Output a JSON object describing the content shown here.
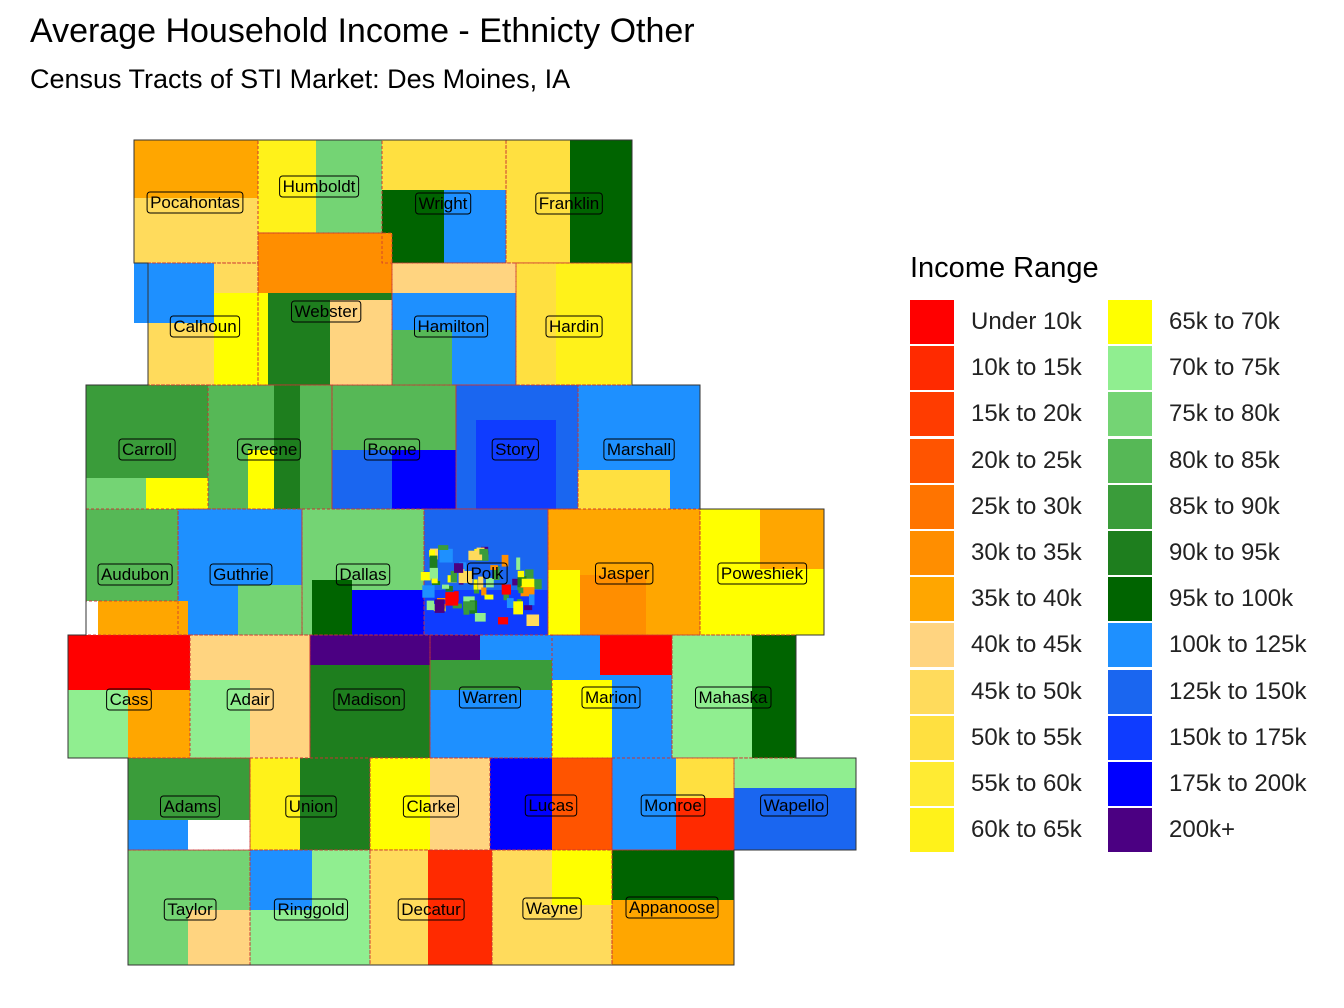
{
  "title": "Average Household Income - Ethnicty Other",
  "subtitle": "Census Tracts of STI Market: Des Moines, IA",
  "legend": {
    "title": "Income Range",
    "items": [
      {
        "label": "Under 10k",
        "color": "#ff0000"
      },
      {
        "label": "10k to 15k",
        "color": "#ff2a00"
      },
      {
        "label": "15k to 20k",
        "color": "#ff3c00"
      },
      {
        "label": "20k to 25k",
        "color": "#ff5400"
      },
      {
        "label": "25k to 30k",
        "color": "#ff7400"
      },
      {
        "label": "30k to 35k",
        "color": "#ff8e00"
      },
      {
        "label": "35k to 40k",
        "color": "#ffa600"
      },
      {
        "label": "40k to 45k",
        "color": "#ffd480"
      },
      {
        "label": "45k to 50k",
        "color": "#ffdb5c"
      },
      {
        "label": "50k to 55k",
        "color": "#ffe040"
      },
      {
        "label": "55k to 60k",
        "color": "#ffeb33"
      },
      {
        "label": "60k to 65k",
        "color": "#fff21a"
      },
      {
        "label": "65k to 70k",
        "color": "#ffff00"
      },
      {
        "label": "70k to 75k",
        "color": "#90ee90"
      },
      {
        "label": "75k to 80k",
        "color": "#74d474"
      },
      {
        "label": "80k to 85k",
        "color": "#56b856"
      },
      {
        "label": "85k to 90k",
        "color": "#3a9c3a"
      },
      {
        "label": "90k to 95k",
        "color": "#1e7e1e"
      },
      {
        "label": "95k to 100k",
        "color": "#006400"
      },
      {
        "label": "100k to 125k",
        "color": "#1e90ff"
      },
      {
        "label": "125k to 150k",
        "color": "#1a66f0"
      },
      {
        "label": "150k to 175k",
        "color": "#0f3cff"
      },
      {
        "label": "175k to 200k",
        "color": "#0000ff"
      },
      {
        "label": "200k+",
        "color": "#4b0082"
      }
    ]
  },
  "counties": [
    {
      "name": "Pocahontas",
      "fill": "#ffdb5c"
    },
    {
      "name": "Humboldt",
      "fill": "#fff21a"
    },
    {
      "name": "Wright",
      "fill": "#1e90ff"
    },
    {
      "name": "Franklin",
      "fill": "#ffe040"
    },
    {
      "name": "Calhoun",
      "fill": "#ffdb5c"
    },
    {
      "name": "Webster",
      "fill": "#1e7e1e"
    },
    {
      "name": "Hamilton",
      "fill": "#1e90ff"
    },
    {
      "name": "Hardin",
      "fill": "#fff21a"
    },
    {
      "name": "Carroll",
      "fill": "#3a9c3a"
    },
    {
      "name": "Greene",
      "fill": "#56b856"
    },
    {
      "name": "Boone",
      "fill": "#56b856"
    },
    {
      "name": "Story",
      "fill": "#1a66f0"
    },
    {
      "name": "Marshall",
      "fill": "#1e90ff"
    },
    {
      "name": "Audubon",
      "fill": "#56b856"
    },
    {
      "name": "Guthrie",
      "fill": "#1e90ff"
    },
    {
      "name": "Dallas",
      "fill": "#74d474"
    },
    {
      "name": "Polk",
      "fill": "#1a66f0"
    },
    {
      "name": "Jasper",
      "fill": "#ffa600"
    },
    {
      "name": "Poweshiek",
      "fill": "#ffff00"
    },
    {
      "name": "Cass",
      "fill": "#90ee90"
    },
    {
      "name": "Adair",
      "fill": "#ffd480"
    },
    {
      "name": "Madison",
      "fill": "#1e7e1e"
    },
    {
      "name": "Warren",
      "fill": "#1e90ff"
    },
    {
      "name": "Marion",
      "fill": "#1e90ff"
    },
    {
      "name": "Mahaska",
      "fill": "#90ee90"
    },
    {
      "name": "Adams",
      "fill": "#3a9c3a"
    },
    {
      "name": "Union",
      "fill": "#fff21a"
    },
    {
      "name": "Clarke",
      "fill": "#ffff00"
    },
    {
      "name": "Lucas",
      "fill": "#0000ff"
    },
    {
      "name": "Monroe",
      "fill": "#1e90ff"
    },
    {
      "name": "Wapello",
      "fill": "#1a66f0"
    },
    {
      "name": "Taylor",
      "fill": "#74d474"
    },
    {
      "name": "Ringgold",
      "fill": "#90ee90"
    },
    {
      "name": "Decatur",
      "fill": "#ff2a00"
    },
    {
      "name": "Wayne",
      "fill": "#ffdb5c"
    },
    {
      "name": "Appanoose",
      "fill": "#ffa600"
    }
  ]
}
